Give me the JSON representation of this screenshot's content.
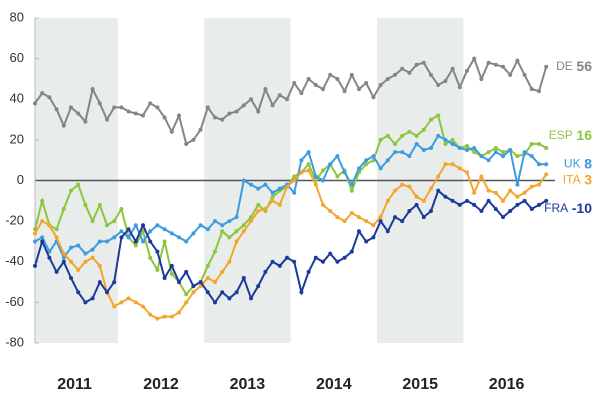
{
  "chart_data": {
    "type": "line",
    "categories": [
      null,
      null,
      null,
      null,
      null,
      null,
      "2011",
      null,
      null,
      null,
      null,
      null,
      null,
      null,
      null,
      null,
      null,
      null,
      "2012",
      null,
      null,
      null,
      null,
      null,
      null,
      null,
      null,
      null,
      null,
      null,
      "2013",
      null,
      null,
      null,
      null,
      null,
      null,
      null,
      null,
      null,
      null,
      null,
      "2014",
      null,
      null,
      null,
      null,
      null,
      null,
      null,
      null,
      null,
      null,
      null,
      "2015",
      null,
      null,
      null,
      null,
      null,
      null,
      null,
      null,
      null,
      null,
      null,
      "2016",
      null,
      null,
      null,
      null,
      null
    ],
    "ylim": [
      -80,
      80
    ],
    "yticks": [
      -80,
      -60,
      -40,
      -20,
      0,
      20,
      40,
      60,
      80
    ],
    "series": [
      {
        "name": "DE",
        "color": "#858585",
        "values": [
          38,
          43,
          41,
          35,
          27,
          36,
          33,
          29,
          45,
          38,
          30,
          36,
          36,
          34,
          33,
          32,
          38,
          36,
          31,
          24,
          32,
          18,
          20,
          25,
          36,
          31,
          30,
          33,
          34,
          37,
          40,
          34,
          45,
          37,
          42,
          40,
          48,
          43,
          50,
          47,
          45,
          52,
          50,
          44,
          52,
          45,
          48,
          41,
          47,
          50,
          52,
          55,
          53,
          57,
          58,
          52,
          47,
          49,
          55,
          46,
          54,
          60,
          50,
          58,
          57,
          56,
          52,
          59,
          52,
          45,
          44,
          56
        ]
      },
      {
        "name": "ESP",
        "color": "#8cc63e",
        "values": [
          -24,
          -10,
          -22,
          -24,
          -14,
          -5,
          -2,
          -12,
          -20,
          -12,
          -22,
          -20,
          -14,
          -28,
          -32,
          -25,
          -38,
          -44,
          -30,
          -46,
          -50,
          -56,
          -52,
          -50,
          -42,
          -35,
          -25,
          -28,
          -25,
          -22,
          -18,
          -12,
          -15,
          -8,
          -5,
          -3,
          2,
          4,
          8,
          0,
          5,
          8,
          2,
          5,
          -5,
          4,
          8,
          10,
          20,
          22,
          18,
          22,
          24,
          22,
          25,
          30,
          32,
          18,
          20,
          16,
          17,
          14,
          12,
          14,
          16,
          14,
          15,
          12,
          13,
          18,
          18,
          16
        ]
      },
      {
        "name": "UK",
        "color": "#3d9be0",
        "values": [
          -30,
          -28,
          -35,
          -30,
          -38,
          -33,
          -32,
          -36,
          -34,
          -30,
          -30,
          -28,
          -25,
          -28,
          -22,
          -30,
          -25,
          -22,
          -24,
          -26,
          -28,
          -30,
          -26,
          -22,
          -24,
          -20,
          -22,
          -20,
          -18,
          0,
          -2,
          -4,
          -2,
          -6,
          -4,
          -2,
          -6,
          10,
          14,
          2,
          0,
          8,
          12,
          4,
          -2,
          6,
          10,
          12,
          6,
          10,
          14,
          14,
          12,
          18,
          15,
          16,
          22,
          20,
          18,
          16,
          15,
          16,
          12,
          10,
          14,
          12,
          15,
          -2,
          14,
          12,
          8,
          8
        ]
      },
      {
        "name": "ITA",
        "color": "#f3a52c",
        "values": [
          -26,
          -20,
          -22,
          -28,
          -36,
          -40,
          -44,
          -40,
          -38,
          -42,
          -55,
          -62,
          -60,
          -58,
          -60,
          -62,
          -66,
          -68,
          -67,
          -67,
          -65,
          -60,
          -55,
          -52,
          -48,
          -50,
          -45,
          -40,
          -30,
          -25,
          -20,
          -15,
          -14,
          -10,
          -12,
          -3,
          0,
          4,
          5,
          -2,
          -12,
          -15,
          -18,
          -20,
          -16,
          -18,
          -20,
          -22,
          -18,
          -10,
          -5,
          -2,
          -3,
          -8,
          -10,
          -4,
          2,
          8,
          8,
          6,
          4,
          -6,
          2,
          -5,
          -6,
          -10,
          -5,
          -8,
          -6,
          -3,
          -2,
          3
        ]
      },
      {
        "name": "FRA",
        "color": "#1c3a9c",
        "values": [
          -42,
          -30,
          -38,
          -45,
          -40,
          -48,
          -55,
          -60,
          -58,
          -50,
          -55,
          -50,
          -28,
          -24,
          -30,
          -22,
          -30,
          -35,
          -48,
          -42,
          -50,
          -45,
          -52,
          -50,
          -55,
          -60,
          -55,
          -58,
          -55,
          -48,
          -58,
          -52,
          -45,
          -40,
          -42,
          -38,
          -40,
          -55,
          -45,
          -38,
          -40,
          -36,
          -40,
          -38,
          -35,
          -25,
          -30,
          -28,
          -20,
          -25,
          -18,
          -20,
          -15,
          -12,
          -18,
          -15,
          -5,
          -8,
          -10,
          -12,
          -10,
          -12,
          -15,
          -10,
          -14,
          -18,
          -15,
          -12,
          -10,
          -14,
          -12,
          -10
        ]
      }
    ]
  }
}
